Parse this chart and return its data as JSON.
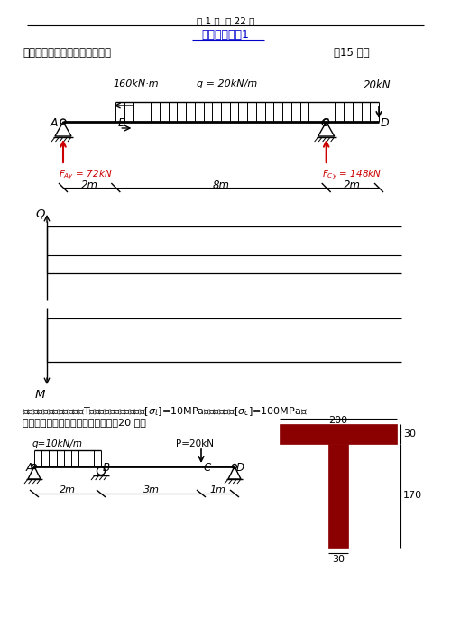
{
  "page_header": "第 1 页  共 22 页",
  "page_title": "材料力学试卷1",
  "section1_label": "一、绘制该梁的剪力、弯矩图。",
  "section1_score": "（15 分）",
  "moment_label": "160kN·m",
  "dist_load_label": "q = 20kN/m",
  "point_load_label": "20kN",
  "node_labels": [
    "A",
    "B",
    "C",
    "D"
  ],
  "reaction_A_label": "$F_{Ay}$ = 72kN",
  "reaction_C_label": "$F_{Cy}$ = 148kN",
  "dim_labels": [
    "2m",
    "8m",
    "2m"
  ],
  "Q_axis_label": "Q",
  "M_axis_label": "M",
  "section2_line1": "二、梁的受力如图，截面为T字型，材料的许用拉应力[$\\sigma_t$]=10MPa，许用压应力[$\\sigma_c$]=100MPa。",
  "section2_line2": "试按正应力强度条件核梁的强度。（20 分）",
  "q_label2": "q=10kN/m",
  "P_label": "P=20kN",
  "node_labels2": [
    "A",
    "B",
    "C",
    "D"
  ],
  "dim_labels2": [
    "2m",
    "3m",
    "1m"
  ],
  "T_section_dim1": "200",
  "T_section_dim2": "30",
  "T_section_dim3": "170",
  "T_section_dim4": "30",
  "bg_color": "#ffffff",
  "text_color": "#000000",
  "red_color": "#cc0000",
  "title_color": "#0000cc",
  "dark_red": "#8B0000"
}
